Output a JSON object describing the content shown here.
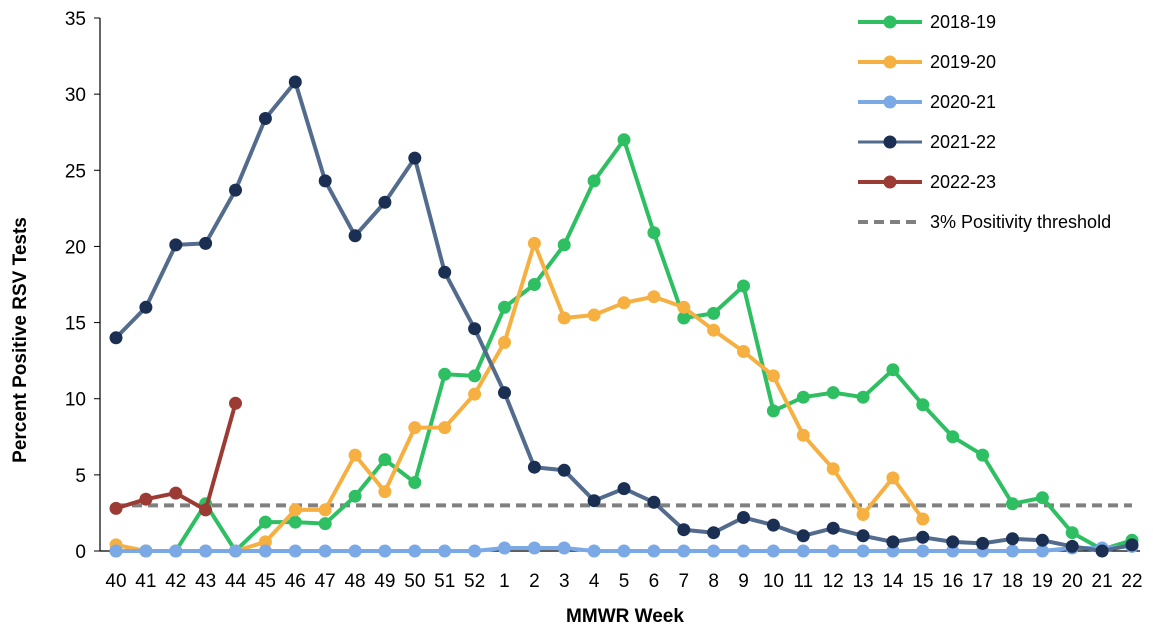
{
  "chart_data": {
    "type": "line",
    "xlabel": "MMWR Week",
    "ylabel": "Percent Positive RSV Tests",
    "ylim": [
      0,
      35
    ],
    "yticks": [
      0,
      5,
      10,
      15,
      20,
      25,
      30,
      35
    ],
    "categories": [
      "40",
      "41",
      "42",
      "43",
      "44",
      "45",
      "46",
      "47",
      "48",
      "49",
      "50",
      "51",
      "52",
      "1",
      "2",
      "3",
      "4",
      "5",
      "6",
      "7",
      "8",
      "9",
      "10",
      "11",
      "12",
      "13",
      "14",
      "15",
      "16",
      "17",
      "18",
      "19",
      "20",
      "21",
      "22"
    ],
    "legend_position": "top-right",
    "grid": false,
    "series": [
      {
        "name": "2018-19",
        "color": "#2fbf63",
        "values": [
          0,
          0,
          0,
          3.1,
          0,
          1.9,
          1.9,
          1.8,
          3.6,
          6.0,
          4.5,
          11.6,
          11.5,
          16.0,
          17.5,
          20.1,
          24.3,
          27.0,
          20.9,
          15.3,
          15.6,
          17.4,
          9.2,
          10.1,
          10.4,
          10.1,
          11.9,
          9.6,
          7.5,
          6.3,
          3.1,
          3.5,
          1.2,
          0.1,
          0.7
        ]
      },
      {
        "name": "2019-20",
        "color": "#f5b041",
        "values": [
          0.4,
          0,
          0,
          0,
          0,
          0.6,
          2.7,
          2.7,
          6.3,
          3.9,
          8.1,
          8.1,
          10.3,
          13.7,
          20.2,
          15.3,
          15.5,
          16.3,
          16.7,
          16.0,
          14.5,
          13.1,
          11.5,
          7.6,
          5.4,
          2.4,
          4.8,
          2.1,
          null,
          null,
          null,
          null,
          null,
          null,
          null
        ]
      },
      {
        "name": "2020-21",
        "color": "#7aa9e6",
        "values": [
          0,
          0,
          0,
          0,
          0,
          0,
          0,
          0,
          0,
          0,
          0,
          0,
          0,
          0.2,
          0.2,
          0.2,
          0,
          0,
          0,
          0,
          0,
          0,
          0,
          0,
          0,
          0,
          0,
          0,
          0,
          0,
          0,
          0,
          0.2,
          0.2,
          0.3
        ]
      },
      {
        "name": "2021-22",
        "color": "#536b8c",
        "marker_color": "#1a2f52",
        "values": [
          14.0,
          16.0,
          20.1,
          20.2,
          23.7,
          28.4,
          30.8,
          24.3,
          20.7,
          22.9,
          25.8,
          18.3,
          14.6,
          10.4,
          5.5,
          5.3,
          3.3,
          4.1,
          3.2,
          1.4,
          1.2,
          2.2,
          1.7,
          1.0,
          1.5,
          1.0,
          0.6,
          0.9,
          0.6,
          0.5,
          0.8,
          0.7,
          0.3,
          0.0,
          0.4
        ]
      },
      {
        "name": "2022-23",
        "color": "#9c3b33",
        "values": [
          2.8,
          3.4,
          3.8,
          2.7,
          9.7,
          null,
          null,
          null,
          null,
          null,
          null,
          null,
          null,
          null,
          null,
          null,
          null,
          null,
          null,
          null,
          null,
          null,
          null,
          null,
          null,
          null,
          null,
          null,
          null,
          null,
          null,
          null,
          null,
          null,
          null
        ]
      }
    ],
    "threshold": {
      "name": "3% Positivity threshold",
      "value": 3,
      "color": "#808080"
    }
  }
}
